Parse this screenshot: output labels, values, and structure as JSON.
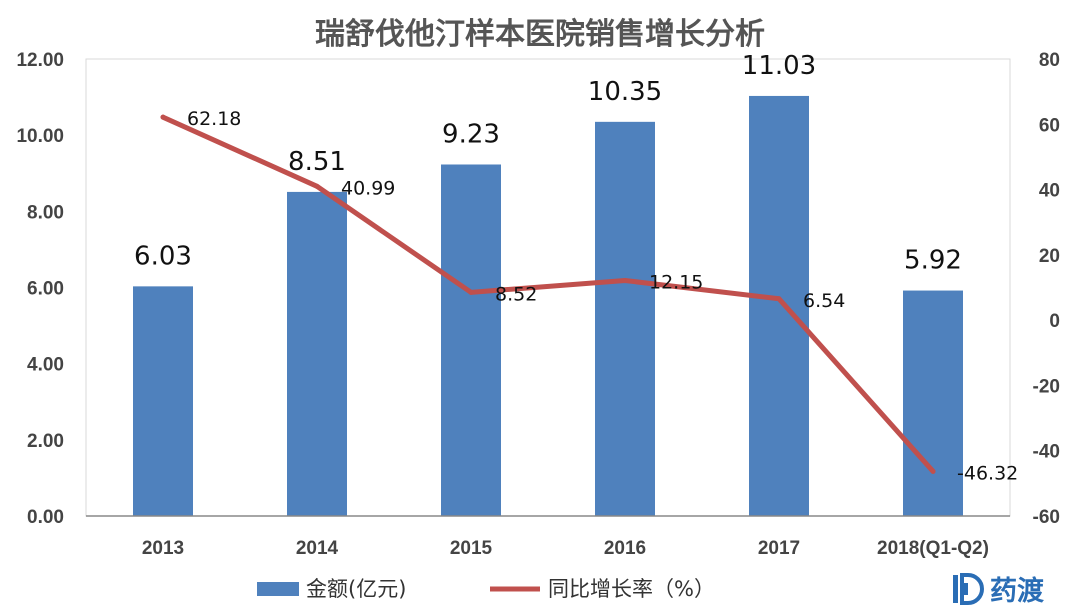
{
  "chart_data": {
    "type": "bar+line",
    "title": "瑞舒伐他汀样本医院销售增长分析",
    "categories": [
      "2013",
      "2014",
      "2015",
      "2016",
      "2017",
      "2018(Q1-Q2)"
    ],
    "series": [
      {
        "name": "金额(亿元)",
        "type": "bar",
        "axis": "left",
        "color": "#4f81bd",
        "values": [
          6.03,
          8.51,
          9.23,
          10.35,
          11.03,
          5.92
        ]
      },
      {
        "name": "同比增长率（%）",
        "type": "line",
        "axis": "right",
        "color": "#c0504d",
        "values": [
          62.18,
          40.99,
          8.52,
          12.15,
          6.54,
          -46.32
        ]
      }
    ],
    "y_left": {
      "min": 0,
      "max": 12,
      "ticks": [
        "0.00",
        "2.00",
        "4.00",
        "6.00",
        "8.00",
        "10.00",
        "12.00"
      ]
    },
    "y_right": {
      "min": -60,
      "max": 80,
      "ticks": [
        "-60",
        "-40",
        "-20",
        "0",
        "20",
        "40",
        "60",
        "80"
      ]
    },
    "bar_labels": [
      "6.03",
      "8.51",
      "9.23",
      "10.35",
      "11.03",
      "5.92"
    ],
    "line_labels": [
      "62.18",
      "40.99",
      "8.52",
      "12.15",
      "6.54",
      "-46.32"
    ],
    "grid": false,
    "legend": "bottom"
  },
  "logo": {
    "text": "药渡",
    "icon": "d-logo-icon",
    "color": "#2a6db5"
  }
}
